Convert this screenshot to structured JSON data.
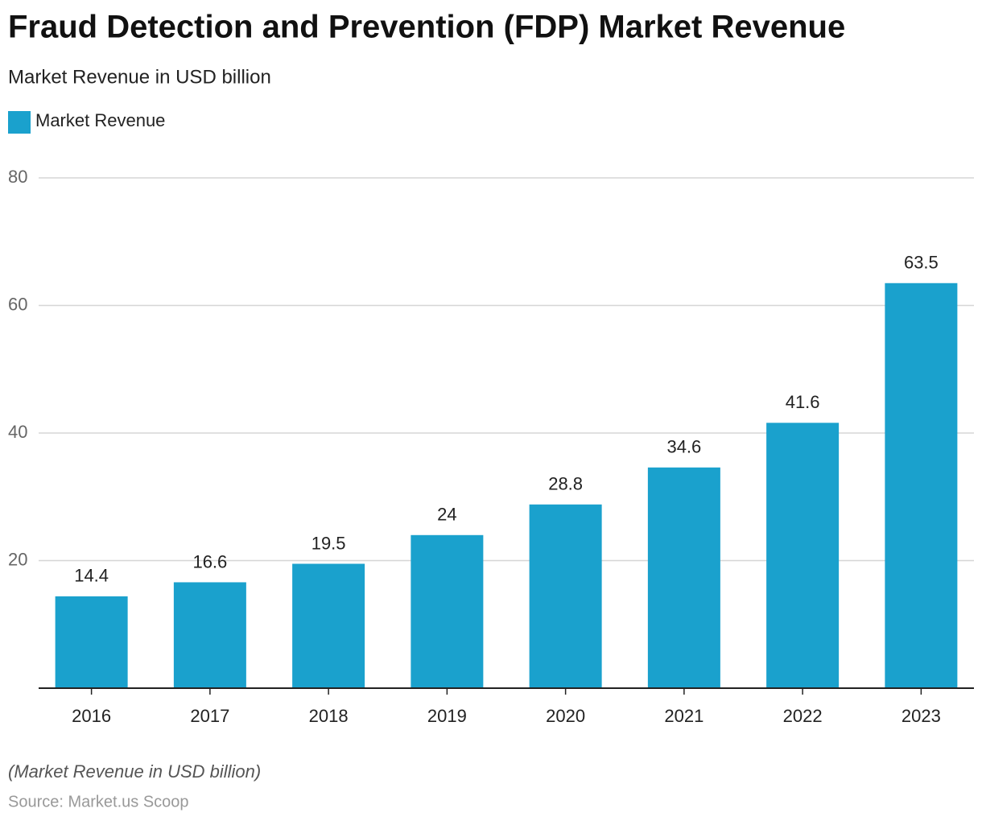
{
  "chart_data": {
    "type": "bar",
    "title": "Fraud Detection and Prevention (FDP) Market Revenue",
    "subtitle": "Market Revenue in USD billion",
    "categories": [
      "2016",
      "2017",
      "2018",
      "2019",
      "2020",
      "2021",
      "2022",
      "2023"
    ],
    "series": [
      {
        "name": "Market Revenue",
        "color": "#1aa1cd",
        "values": [
          14.4,
          16.6,
          19.5,
          24,
          28.8,
          34.6,
          41.6,
          63.5
        ]
      }
    ],
    "ylim": [
      0,
      80
    ],
    "yticks": [
      20,
      40,
      60,
      80
    ],
    "grid": true,
    "note": "(Market Revenue in USD billion)",
    "source": "Source: Market.us Scoop"
  }
}
